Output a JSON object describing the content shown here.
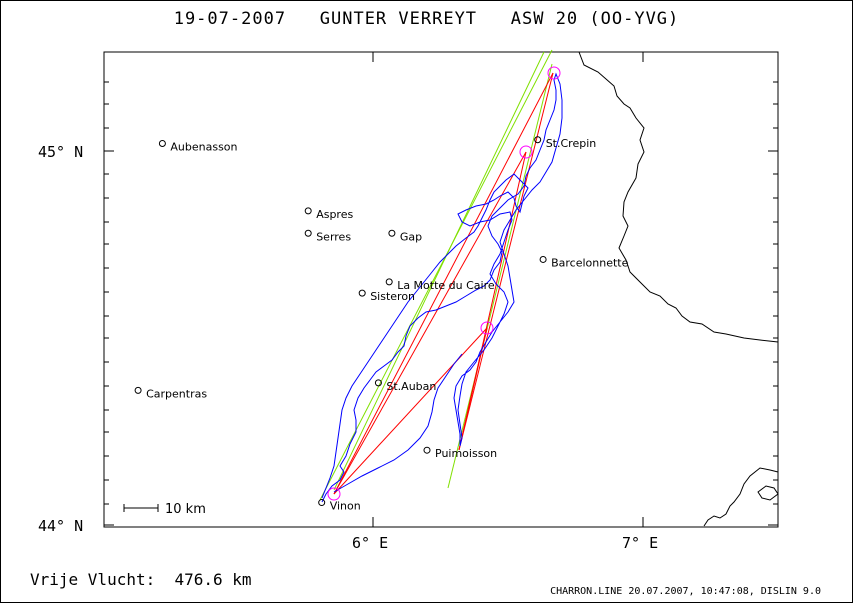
{
  "title": "19-07-2007   GUNTER VERREYT   ASW 20 (OO-YVG)",
  "distance_label": "Vrije Vlucht:  476.6 km",
  "footer": "CHARRON.LINE 20.07.2007, 10:47:08, DISLIN 9.0",
  "scale_bar_label": "10 km",
  "colors": {
    "track": "#0000ff",
    "triangle": "#ff0000",
    "sector": "#80e000",
    "turnpoint": "#ff00ff",
    "border": "#000000"
  },
  "axes": {
    "x_ticks": [
      {
        "label": "6° E",
        "lon": 6.0
      },
      {
        "label": "7° E",
        "lon": 7.0
      }
    ],
    "y_ticks": [
      {
        "label": "45° N",
        "lat": 45.0
      },
      {
        "label": "44° N",
        "lat": 44.0
      }
    ]
  },
  "places": [
    {
      "name": "Aubenasson",
      "lon": 5.22,
      "lat": 45.02
    },
    {
      "name": "Aspres",
      "lon": 5.76,
      "lat": 44.84
    },
    {
      "name": "Serres",
      "lon": 5.76,
      "lat": 44.78
    },
    {
      "name": "Gap",
      "lon": 6.07,
      "lat": 44.78
    },
    {
      "name": "St.Crepin",
      "lon": 6.61,
      "lat": 45.03
    },
    {
      "name": "Barcelonnette",
      "lon": 6.63,
      "lat": 44.71
    },
    {
      "name": "La Motte du Caire",
      "lon": 6.06,
      "lat": 44.65
    },
    {
      "name": "Sisteron",
      "lon": 5.96,
      "lat": 44.62
    },
    {
      "name": "St.Auban",
      "lon": 6.02,
      "lat": 44.38
    },
    {
      "name": "Carpentras",
      "lon": 5.13,
      "lat": 44.36
    },
    {
      "name": "Puimoisson",
      "lon": 6.2,
      "lat": 44.2
    },
    {
      "name": "Vinon",
      "lon": 5.81,
      "lat": 44.06
    }
  ],
  "turnpoints": [
    {
      "lon": 5.84,
      "lat": 44.08
    },
    {
      "lon": 6.66,
      "lat": 45.21
    },
    {
      "lon": 6.56,
      "lat": 45.0
    },
    {
      "lon": 6.42,
      "lat": 44.53
    }
  ]
}
